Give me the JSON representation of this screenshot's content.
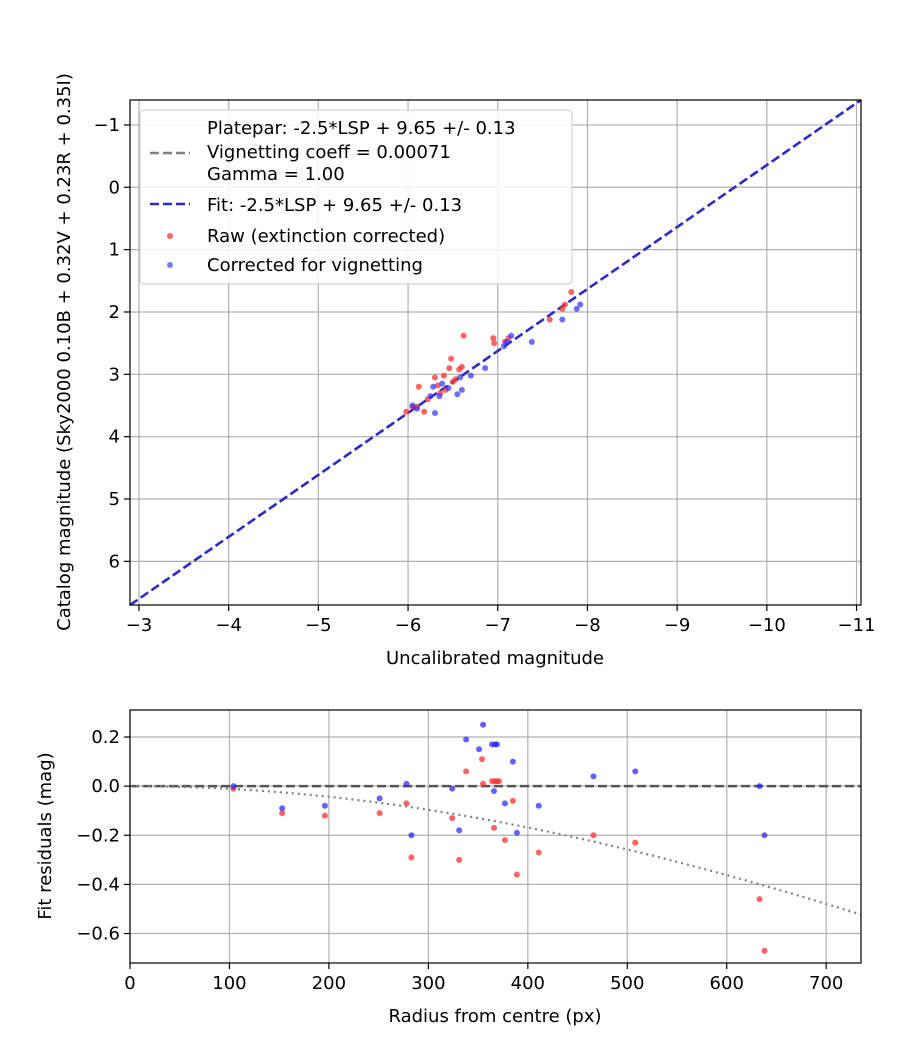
{
  "chart_data": [
    {
      "type": "scatter",
      "title": "",
      "xlabel": "Uncalibrated magnitude",
      "ylabel": "Catalog magnitude (Sky2000 0.10B + 0.32V + 0.23R + 0.35I)",
      "xlim": [
        -2.9,
        -11.05
      ],
      "ylim": [
        6.7,
        -1.4
      ],
      "x_ticks": [
        -3,
        -4,
        -5,
        -6,
        -7,
        -8,
        -9,
        -10,
        -11
      ],
      "x_tick_labels": [
        "−3",
        "−4",
        "−5",
        "−6",
        "−7",
        "−8",
        "−9",
        "−10",
        "−11"
      ],
      "y_ticks": [
        -1,
        0,
        1,
        2,
        3,
        4,
        5,
        6
      ],
      "y_tick_labels": [
        "−1",
        "0",
        "1",
        "2",
        "3",
        "4",
        "5",
        "6"
      ],
      "grid": true,
      "legend": {
        "position": "top-left",
        "platepar_line1": "Platepar: -2.5*LSP + 9.65 +/- 0.13",
        "platepar_line2": "Vignetting coeff = 0.00071",
        "platepar_line3": "Gamma = 1.00",
        "fit": "Fit: -2.5*LSP + 9.65 +/- 0.13",
        "raw": "Raw (extinction corrected)",
        "corrected": "Corrected for vignetting"
      },
      "lines": [
        {
          "name": "Platepar",
          "color": "#7f7f7f",
          "style": "dashed",
          "x": [
            -2.9,
            -11.05
          ],
          "y": [
            6.7,
            -1.4
          ]
        },
        {
          "name": "Fit",
          "color": "#2a2acc",
          "style": "dashed",
          "x": [
            -2.9,
            -11.05
          ],
          "y": [
            6.7,
            -1.4
          ]
        }
      ],
      "series": [
        {
          "name": "Raw (extinction corrected)",
          "color": "#ff3030",
          "x": [
            -5.98,
            -6.05,
            -6.1,
            -6.18,
            -6.22,
            -6.3,
            -6.33,
            -6.36,
            -6.4,
            -6.42,
            -6.46,
            -6.48,
            -6.5,
            -6.53,
            -6.57,
            -6.6,
            -6.62,
            -6.95,
            -6.96,
            -7.08,
            -7.12,
            -7.58,
            -7.72,
            -7.75,
            -7.82,
            -6.12
          ],
          "y": [
            3.6,
            3.52,
            3.52,
            3.6,
            3.4,
            3.05,
            3.18,
            3.3,
            3.02,
            3.25,
            2.9,
            2.75,
            3.12,
            3.08,
            2.92,
            2.88,
            2.38,
            2.42,
            2.5,
            2.48,
            2.42,
            2.12,
            1.95,
            1.88,
            1.68,
            3.2
          ]
        },
        {
          "name": "Corrected for vignetting",
          "color": "#3030ff",
          "x": [
            -6.05,
            -6.1,
            -6.25,
            -6.28,
            -6.3,
            -6.35,
            -6.38,
            -6.45,
            -6.55,
            -6.6,
            -6.58,
            -6.7,
            -6.86,
            -7.07,
            -7.1,
            -7.15,
            -7.38,
            -7.72,
            -7.88,
            -7.92
          ],
          "y": [
            3.5,
            3.55,
            3.35,
            3.2,
            3.62,
            3.35,
            3.15,
            3.22,
            3.32,
            3.25,
            3.05,
            3.02,
            2.9,
            2.55,
            2.48,
            2.38,
            2.48,
            2.12,
            1.95,
            1.88
          ]
        }
      ]
    },
    {
      "type": "scatter",
      "title": "",
      "xlabel": "Radius from centre (px)",
      "ylabel": "Fit residuals (mag)",
      "xlim": [
        0,
        735
      ],
      "ylim": [
        -0.72,
        0.31
      ],
      "x_ticks": [
        0,
        100,
        200,
        300,
        400,
        500,
        600,
        700
      ],
      "x_tick_labels": [
        "0",
        "100",
        "200",
        "300",
        "400",
        "500",
        "600",
        "700"
      ],
      "y_ticks": [
        0.2,
        0.0,
        -0.2,
        -0.4,
        -0.6
      ],
      "y_tick_labels": [
        "0.2",
        "0.0",
        "−0.2",
        "−0.4",
        "−0.6"
      ],
      "grid": true,
      "lines": [
        {
          "name": "zero",
          "color": "#555555",
          "style": "dashed",
          "x": [
            0,
            735
          ],
          "y": [
            0,
            0
          ]
        },
        {
          "name": "vignetting model",
          "color": "#808080",
          "style": "dotted",
          "vignetting_coeff": 0.00071
        }
      ],
      "series": [
        {
          "name": "Raw (extinction corrected)",
          "color": "#ff3030",
          "x": [
            104,
            153,
            196,
            251,
            278,
            283,
            324,
            331,
            338,
            354,
            355,
            364,
            366,
            367,
            369,
            371,
            377,
            385,
            389,
            411,
            466,
            508,
            633,
            638
          ],
          "y": [
            -0.01,
            -0.11,
            -0.12,
            -0.11,
            -0.07,
            -0.29,
            -0.13,
            -0.3,
            0.06,
            0.11,
            0.01,
            0.02,
            -0.17,
            0.02,
            0.02,
            0.02,
            -0.22,
            -0.06,
            -0.36,
            -0.27,
            -0.2,
            -0.23,
            -0.46,
            -0.67
          ]
        },
        {
          "name": "Corrected for vignetting",
          "color": "#2020ff",
          "x": [
            104,
            153,
            196,
            251,
            278,
            283,
            324,
            331,
            338,
            351,
            355,
            364,
            366,
            367,
            369,
            377,
            385,
            389,
            411,
            466,
            508,
            633,
            638
          ],
          "y": [
            0.0,
            -0.09,
            -0.08,
            -0.05,
            0.01,
            -0.2,
            -0.01,
            -0.18,
            0.19,
            0.15,
            0.25,
            0.17,
            -0.02,
            0.17,
            0.17,
            -0.07,
            0.1,
            -0.19,
            -0.08,
            0.04,
            0.06,
            0.0,
            -0.2
          ]
        }
      ]
    }
  ]
}
